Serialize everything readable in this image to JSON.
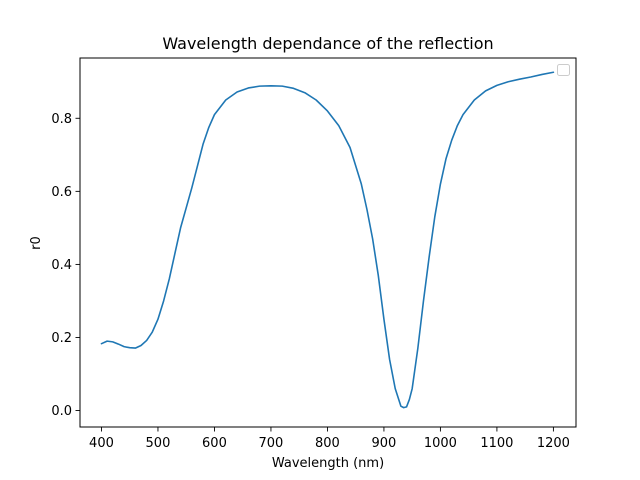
{
  "chart_data": {
    "type": "line",
    "title": "Wavelength dependance of the reflection",
    "xlabel": "Wavelength (nm)",
    "ylabel": "r0",
    "xlim": [
      362,
      1240
    ],
    "ylim": [
      -0.045,
      0.965
    ],
    "xticks": [
      400,
      500,
      600,
      700,
      800,
      900,
      1000,
      1100,
      1200
    ],
    "xtick_labels": [
      "400",
      "500",
      "600",
      "700",
      "800",
      "900",
      "1000",
      "1100",
      "1200"
    ],
    "yticks": [
      0.0,
      0.2,
      0.4,
      0.6,
      0.8
    ],
    "ytick_labels": [
      "0.0",
      "0.2",
      "0.4",
      "0.6",
      "0.8"
    ],
    "grid": false,
    "legend": {
      "placement": "upper-right",
      "entries": []
    },
    "series": [
      {
        "color": "#1f77b4",
        "x": [
          400,
          410,
          420,
          430,
          440,
          450,
          460,
          470,
          480,
          490,
          500,
          510,
          520,
          530,
          540,
          550,
          560,
          570,
          580,
          590,
          600,
          620,
          640,
          660,
          680,
          700,
          720,
          740,
          760,
          780,
          800,
          820,
          840,
          860,
          870,
          880,
          890,
          900,
          910,
          920,
          930,
          935,
          940,
          945,
          950,
          960,
          970,
          980,
          990,
          1000,
          1010,
          1020,
          1030,
          1040,
          1060,
          1080,
          1100,
          1120,
          1140,
          1160,
          1180,
          1200
        ],
        "y": [
          0.183,
          0.19,
          0.188,
          0.182,
          0.175,
          0.172,
          0.171,
          0.178,
          0.192,
          0.215,
          0.25,
          0.3,
          0.36,
          0.43,
          0.5,
          0.555,
          0.61,
          0.67,
          0.73,
          0.775,
          0.81,
          0.85,
          0.872,
          0.883,
          0.888,
          0.889,
          0.888,
          0.882,
          0.87,
          0.85,
          0.82,
          0.78,
          0.72,
          0.62,
          0.55,
          0.47,
          0.37,
          0.25,
          0.14,
          0.06,
          0.012,
          0.008,
          0.01,
          0.03,
          0.06,
          0.17,
          0.3,
          0.42,
          0.53,
          0.62,
          0.69,
          0.74,
          0.78,
          0.81,
          0.85,
          0.875,
          0.89,
          0.9,
          0.907,
          0.913,
          0.92,
          0.926
        ]
      }
    ]
  }
}
